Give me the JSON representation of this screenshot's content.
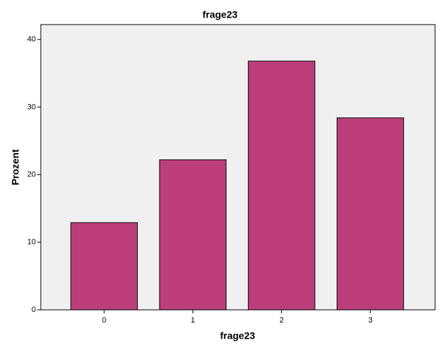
{
  "chart_data": {
    "type": "bar",
    "title": "frage23",
    "x_label": "frage23",
    "y_label": "Prozent",
    "categories": [
      "0",
      "1",
      "2",
      "3"
    ],
    "values": [
      12.9,
      22.2,
      36.8,
      28.4
    ],
    "color": "#bc3f7c",
    "ylim": [
      0,
      42.2
    ],
    "yticks": [
      0,
      10,
      20,
      30,
      40
    ],
    "grid": false
  }
}
